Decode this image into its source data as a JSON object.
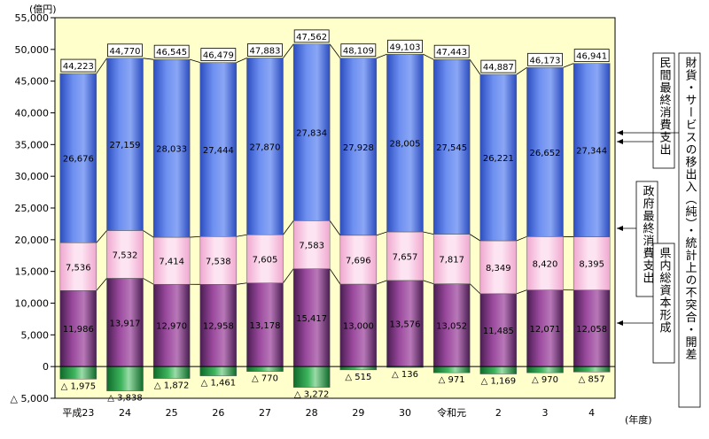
{
  "chart_data": {
    "type": "bar",
    "stacked": true,
    "unit_label": "(億円)",
    "x_unit_label": "(年度)",
    "categories": [
      "平成23",
      "24",
      "25",
      "26",
      "27",
      "28",
      "29",
      "30",
      "令和元",
      "2",
      "3",
      "4"
    ],
    "series": [
      {
        "name": "県内総資本形成",
        "color": "#9b4a9e",
        "values": [
          11986,
          13917,
          12970,
          12958,
          13178,
          15417,
          13000,
          13576,
          13052,
          11485,
          12071,
          12058
        ],
        "labels": [
          "11,986",
          "13,917",
          "12,970",
          "12,958",
          "13,178",
          "15,417",
          "13,000",
          "13,576",
          "13,052",
          "11,485",
          "12,071",
          "12,058"
        ]
      },
      {
        "name": "政府最終消費支出",
        "color": "#f9c8e4",
        "values": [
          7536,
          7532,
          7414,
          7538,
          7605,
          7583,
          7696,
          7657,
          7817,
          8349,
          8420,
          8395
        ],
        "labels": [
          "7,536",
          "7,532",
          "7,414",
          "7,538",
          "7,605",
          "7,583",
          "7,696",
          "7,657",
          "7,817",
          "8,349",
          "8,420",
          "8,395"
        ]
      },
      {
        "name": "民間最終消費支出",
        "color": "#5e82e8",
        "values": [
          26676,
          27159,
          28033,
          27444,
          27870,
          27834,
          27928,
          28005,
          27545,
          26221,
          26652,
          27344
        ],
        "labels": [
          "26,676",
          "27,159",
          "28,033",
          "27,444",
          "27,870",
          "27,834",
          "27,928",
          "28,005",
          "27,545",
          "26,221",
          "26,652",
          "27,344"
        ]
      },
      {
        "name": "財貨・サービスの移出入（純）・統計上の不突合・開差",
        "color": "#2e9a4a",
        "values": [
          -1975,
          -3838,
          -1872,
          -1461,
          -770,
          -3272,
          -515,
          -136,
          -971,
          -1169,
          -970,
          -857
        ],
        "labels": [
          "△ 1,975",
          "△ 3,838",
          "△ 1,872",
          "△ 1,461",
          "△ 770",
          "△ 3,272",
          "△ 515",
          "△ 136",
          "△ 971",
          "△ 1,169",
          "△ 970",
          "△ 857"
        ]
      }
    ],
    "totals": [
      "44,223",
      "44,770",
      "46,545",
      "46,479",
      "47,883",
      "47,562",
      "48,109",
      "49,103",
      "47,443",
      "44,887",
      "46,173",
      "46,941"
    ],
    "ylim": [
      -5000,
      55000
    ],
    "yticks": [
      -5000,
      0,
      5000,
      10000,
      15000,
      20000,
      25000,
      30000,
      35000,
      40000,
      45000,
      50000,
      55000
    ],
    "ytick_labels": [
      "△ 5,000",
      "0",
      "5,000",
      "10,000",
      "15,000",
      "20,000",
      "25,000",
      "30,000",
      "35,000",
      "40,000",
      "45,000",
      "50,000",
      "55,000"
    ],
    "plot_background": "#ffffcc",
    "legend_placement": "right",
    "grid": false
  }
}
